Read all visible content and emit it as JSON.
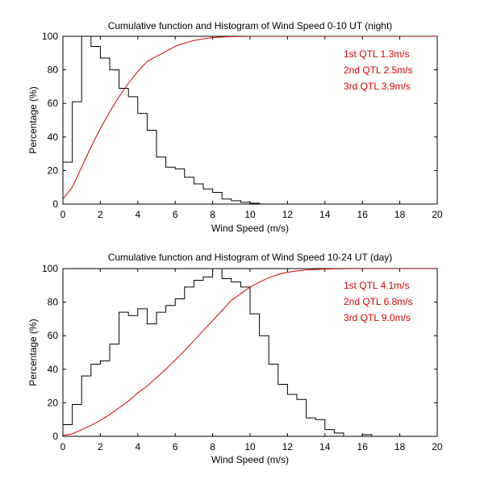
{
  "chart_data": [
    {
      "type": "line",
      "title": "Cumulative function and Histogram of Wind Speed 0-10 UT (night)",
      "xlabel": "Wind Speed (m/s)",
      "ylabel": "Percentage (%)",
      "xlim": [
        0,
        20
      ],
      "ylim": [
        0,
        100
      ],
      "xticks": [
        0,
        2,
        4,
        6,
        8,
        10,
        12,
        14,
        16,
        18,
        20
      ],
      "yticks": [
        0,
        20,
        40,
        60,
        80,
        100
      ],
      "annotations": [
        "1st QTL 1.3m/s",
        "2nd QTL 2.5m/s",
        "3rd QTL 3.9m/s"
      ],
      "series": [
        {
          "name": "Histogram",
          "kind": "step",
          "color": "#000000",
          "bin_width": 0.5,
          "x": [
            0,
            0.5,
            1,
            1.5,
            2,
            2.5,
            3,
            3.5,
            4,
            4.5,
            5,
            5.5,
            6,
            6.5,
            7,
            7.5,
            8,
            8.5,
            9,
            9.5,
            10,
            10.5
          ],
          "values": [
            25,
            61,
            100,
            94,
            87,
            80,
            69,
            64,
            54,
            44,
            28,
            22,
            21,
            16,
            12,
            9,
            7,
            3,
            2,
            1,
            0.5,
            0
          ]
        },
        {
          "name": "Cumulative",
          "kind": "line",
          "color": "#d40000",
          "x": [
            0,
            0.5,
            1,
            1.5,
            2,
            2.5,
            3,
            3.5,
            4,
            4.5,
            5,
            5.5,
            6,
            6.5,
            7,
            7.5,
            8,
            8.5,
            9,
            10,
            11,
            12,
            20
          ],
          "values": [
            3,
            10,
            22,
            34,
            45,
            55,
            64,
            72,
            79,
            85,
            88,
            91,
            94,
            96,
            97.5,
            98.5,
            99.2,
            99.6,
            99.8,
            100,
            100,
            100,
            100
          ]
        }
      ]
    },
    {
      "type": "line",
      "title": "Cumulative function and Histogram of Wind Speed 10-24 UT (day)",
      "xlabel": "Wind Speed (m/s)",
      "ylabel": "Percentage (%)",
      "xlim": [
        0,
        20
      ],
      "ylim": [
        0,
        100
      ],
      "xticks": [
        0,
        2,
        4,
        6,
        8,
        10,
        12,
        14,
        16,
        18,
        20
      ],
      "yticks": [
        0,
        20,
        40,
        60,
        80,
        100
      ],
      "annotations": [
        "1st QTL 4.1m/s",
        "2nd QTL 6.8m/s",
        "3rd QTL 9.0m/s"
      ],
      "series": [
        {
          "name": "Histogram",
          "kind": "step",
          "color": "#000000",
          "bin_width": 0.5,
          "x": [
            0,
            0.5,
            1,
            1.5,
            2,
            2.5,
            3,
            3.5,
            4,
            4.5,
            5,
            5.5,
            6,
            6.5,
            7,
            7.5,
            8,
            8.5,
            9,
            9.5,
            10,
            10.5,
            11,
            11.5,
            12,
            12.5,
            13,
            13.5,
            14,
            14.5,
            15,
            15.5,
            16,
            16.5
          ],
          "values": [
            7,
            19,
            36,
            43,
            45,
            55,
            74,
            72,
            76,
            67,
            74,
            78,
            82,
            89,
            93,
            95,
            100,
            94,
            92,
            89,
            73,
            60,
            43,
            31,
            25,
            22,
            11,
            10,
            4,
            2,
            0,
            0,
            1,
            0
          ]
        },
        {
          "name": "Cumulative",
          "kind": "line",
          "color": "#d40000",
          "x": [
            0,
            0.5,
            1,
            1.5,
            2,
            2.5,
            3,
            3.5,
            4,
            4.5,
            5,
            5.5,
            6,
            6.5,
            7,
            7.5,
            8,
            8.5,
            9,
            9.5,
            10,
            10.5,
            11,
            11.5,
            12,
            12.5,
            13,
            13.5,
            14,
            14.5,
            15,
            16,
            20
          ],
          "values": [
            0.5,
            1.5,
            4,
            6.5,
            9.5,
            13,
            17,
            21,
            26,
            30,
            35,
            40,
            45.5,
            51,
            57,
            63,
            69,
            75,
            81,
            85,
            89,
            92,
            94.5,
            96.5,
            97.8,
            98.6,
            99.2,
            99.5,
            99.7,
            99.85,
            99.95,
            100,
            100
          ]
        }
      ]
    }
  ]
}
